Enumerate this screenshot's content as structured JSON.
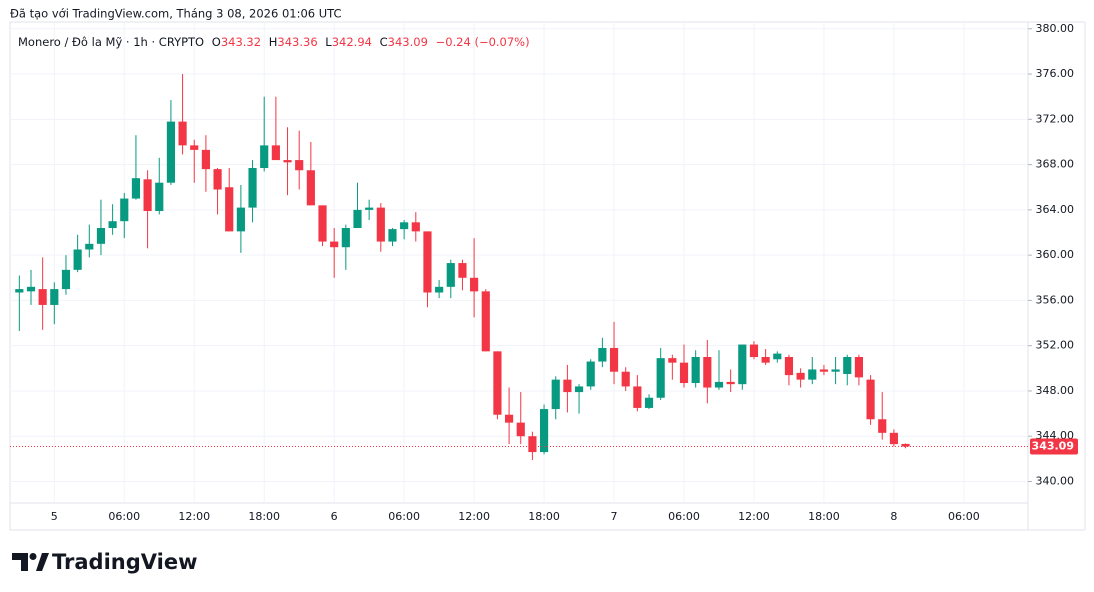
{
  "header": "Đã tạo với TradingView.com, Tháng 3 08, 2026 01:06 UTC",
  "branding": "TradingView",
  "chart_data": {
    "type": "candlestick",
    "legend": {
      "symbol": "Monero / Đô la Mỹ · 1h · CRYPTO",
      "open_label": "O",
      "open": 343.32,
      "high_label": "H",
      "high": 343.36,
      "low_label": "L",
      "low": 342.94,
      "close_label": "C",
      "close": 343.09,
      "change": "−0.24 (−0.07%)"
    },
    "open": [
      356.7,
      356.8,
      357.0,
      355.6,
      357.0,
      358.7,
      360.5,
      361.0,
      362.4,
      363.0,
      365.0,
      366.7,
      363.9,
      366.4,
      371.8,
      369.7,
      369.3,
      367.6,
      366.0,
      362.1,
      364.2,
      367.7,
      369.7,
      368.4,
      368.4,
      367.5,
      364.4,
      361.2,
      360.7,
      362.4,
      364.0,
      364.2,
      361.2,
      362.3,
      362.9,
      362.1,
      356.7,
      357.2,
      359.3,
      358.0,
      356.8,
      351.5,
      345.9,
      345.2,
      344.0,
      342.6,
      346.4,
      349.0,
      347.9,
      348.4,
      350.6,
      351.8,
      349.7,
      348.4,
      346.5,
      347.4,
      350.9,
      350.5,
      348.7,
      351.0,
      348.3,
      348.8,
      348.6,
      352.1,
      351.0,
      350.8,
      351.0,
      349.6,
      349.0,
      349.9,
      349.7,
      349.5,
      351.0,
      349.0,
      345.5,
      344.3,
      343.32
    ],
    "high": [
      358.2,
      358.7,
      359.8,
      357.6,
      360.0,
      361.8,
      362.7,
      364.9,
      364.5,
      365.5,
      370.6,
      367.5,
      368.6,
      373.7,
      376.0,
      370.2,
      370.6,
      367.7,
      367.7,
      366.2,
      368.4,
      374.0,
      374.0,
      371.3,
      371.0,
      370.0,
      364.4,
      362.4,
      362.7,
      366.4,
      364.9,
      364.6,
      362.4,
      363.1,
      363.8,
      362.1,
      357.8,
      359.6,
      359.6,
      361.5,
      357.0,
      351.5,
      348.3,
      347.9,
      344.4,
      346.8,
      349.3,
      350.3,
      348.6,
      350.8,
      352.7,
      354.1,
      350.1,
      349.4,
      347.7,
      351.8,
      351.2,
      352.1,
      351.6,
      352.5,
      351.6,
      349.9,
      352.1,
      352.4,
      351.7,
      351.5,
      351.2,
      350.0,
      351.0,
      350.3,
      351.0,
      351.2,
      351.2,
      349.4,
      347.9,
      344.6,
      343.36
    ],
    "low": [
      353.3,
      355.6,
      353.4,
      353.9,
      356.5,
      358.5,
      359.8,
      360.0,
      361.8,
      361.5,
      364.9,
      360.6,
      363.6,
      366.2,
      368.9,
      366.4,
      365.6,
      363.6,
      362.1,
      360.2,
      362.9,
      367.4,
      368.4,
      365.3,
      365.8,
      364.4,
      360.8,
      358.0,
      358.7,
      362.4,
      363.1,
      360.3,
      360.8,
      361.4,
      361.2,
      355.4,
      356.2,
      356.2,
      356.9,
      354.5,
      351.5,
      345.5,
      343.3,
      343.3,
      341.9,
      342.4,
      345.5,
      346.1,
      346.0,
      348.1,
      350.1,
      348.6,
      348.0,
      346.2,
      346.4,
      347.2,
      349.0,
      348.3,
      348.3,
      346.9,
      348.1,
      347.9,
      348.1,
      350.8,
      350.3,
      350.5,
      348.5,
      348.3,
      348.6,
      349.4,
      348.6,
      348.5,
      348.5,
      345.0,
      343.7,
      343.1,
      342.94
    ],
    "close": [
      357.0,
      357.2,
      355.6,
      357.0,
      358.7,
      360.5,
      361.0,
      362.4,
      363.0,
      365.0,
      366.8,
      363.9,
      366.4,
      371.8,
      369.7,
      369.3,
      367.6,
      365.8,
      362.1,
      364.2,
      367.7,
      369.7,
      368.4,
      368.2,
      367.5,
      364.4,
      361.2,
      360.7,
      362.4,
      364.0,
      364.2,
      361.2,
      362.3,
      362.9,
      362.1,
      356.7,
      357.2,
      359.3,
      358.0,
      356.8,
      351.5,
      345.9,
      345.2,
      344.0,
      342.6,
      346.4,
      349.0,
      347.9,
      348.4,
      350.6,
      351.8,
      349.7,
      348.4,
      346.5,
      347.4,
      350.9,
      350.5,
      348.7,
      351.0,
      348.3,
      348.8,
      348.6,
      352.1,
      351.0,
      350.5,
      351.3,
      349.4,
      349.0,
      349.9,
      349.7,
      349.9,
      351.0,
      349.2,
      345.5,
      344.3,
      343.3,
      343.09
    ],
    "up_color": "#089981",
    "down_color": "#f23645",
    "xlim": [
      -0.8,
      86.5
    ],
    "xticks": [
      {
        "value": 3,
        "label": "5"
      },
      {
        "value": 9,
        "label": "06:00"
      },
      {
        "value": 15,
        "label": "12:00"
      },
      {
        "value": 21,
        "label": "18:00"
      },
      {
        "value": 27,
        "label": "6"
      },
      {
        "value": 33,
        "label": "06:00"
      },
      {
        "value": 39,
        "label": "12:00"
      },
      {
        "value": 45,
        "label": "18:00"
      },
      {
        "value": 51,
        "label": "7"
      },
      {
        "value": 57,
        "label": "06:00"
      },
      {
        "value": 63,
        "label": "12:00"
      },
      {
        "value": 69,
        "label": "18:00"
      },
      {
        "value": 75,
        "label": "8"
      },
      {
        "value": 81,
        "label": "06:00"
      }
    ],
    "ylim": [
      338.1,
      380.6
    ],
    "yticks": [
      {
        "value": 340,
        "label": "340.00"
      },
      {
        "value": 344,
        "label": "344.00"
      },
      {
        "value": 348,
        "label": "348.00"
      },
      {
        "value": 352,
        "label": "352.00"
      },
      {
        "value": 356,
        "label": "356.00"
      },
      {
        "value": 360,
        "label": "360.00"
      },
      {
        "value": 364,
        "label": "364.00"
      },
      {
        "value": 368,
        "label": "368.00"
      },
      {
        "value": 372,
        "label": "372.00"
      },
      {
        "value": 376,
        "label": "376.00"
      },
      {
        "value": 380,
        "label": "380.00"
      }
    ],
    "grid": true,
    "last_price": 343.09
  }
}
